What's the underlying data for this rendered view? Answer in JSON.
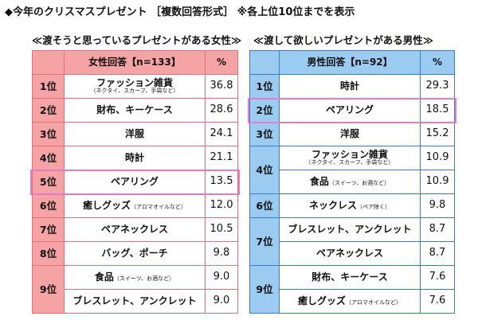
{
  "title": "◆今年のクリスマスプレゼント ［複数回答形式］ ※各上位10位までを表示",
  "female": {
    "subtitle": "≪渡そうと思っているプレゼントがある女性≫",
    "header": "女性回答【n=133】",
    "pct_header": "%",
    "colors": {
      "fill": "#f5a3a5",
      "border": "#e0707a"
    },
    "highlight_rank": "5位",
    "groups": [
      {
        "rank": "1位",
        "items": [
          {
            "name": "ファッション雑貨",
            "note": "（ネクタイ、スカーフ、手袋など）",
            "note_style": "below",
            "pct": "36.8"
          }
        ]
      },
      {
        "rank": "2位",
        "items": [
          {
            "name": "財布、キーケース",
            "pct": "28.6"
          }
        ]
      },
      {
        "rank": "3位",
        "items": [
          {
            "name": "洋服",
            "pct": "24.1"
          }
        ]
      },
      {
        "rank": "4位",
        "items": [
          {
            "name": "時計",
            "pct": "21.1"
          }
        ]
      },
      {
        "rank": "5位",
        "items": [
          {
            "name": "ペアリング",
            "pct": "13.5"
          }
        ]
      },
      {
        "rank": "6位",
        "items": [
          {
            "name": "癒しグッズ",
            "note": "（アロマオイルなど）",
            "pct": "12.0"
          }
        ]
      },
      {
        "rank": "7位",
        "items": [
          {
            "name": "ペアネックレス",
            "pct": "10.5"
          }
        ]
      },
      {
        "rank": "8位",
        "items": [
          {
            "name": "バッグ、ポーチ",
            "pct": "9.8"
          }
        ]
      },
      {
        "rank": "9位",
        "items": [
          {
            "name": "食品",
            "note": "（スイーツ、お酒など）",
            "pct": "9.0"
          },
          {
            "name": "ブレスレット、アンクレット",
            "pct": "9.0"
          }
        ]
      }
    ]
  },
  "male": {
    "subtitle": "≪渡して欲しいプレゼントがある男性≫",
    "header": "男性回答【n=92】",
    "pct_header": "%",
    "colors": {
      "fill": "#9ccbf2",
      "border": "#3b7bc7"
    },
    "highlight_rank": "2位",
    "groups": [
      {
        "rank": "1位",
        "items": [
          {
            "name": "時計",
            "pct": "29.3"
          }
        ]
      },
      {
        "rank": "2位",
        "items": [
          {
            "name": "ペアリング",
            "pct": "18.5"
          }
        ]
      },
      {
        "rank": "3位",
        "items": [
          {
            "name": "洋服",
            "pct": "15.2"
          }
        ]
      },
      {
        "rank": "4位",
        "items": [
          {
            "name": "ファッション雑貨",
            "note": "（ネクタイ、スカーフ、手袋など）",
            "note_style": "below",
            "pct": "10.9"
          },
          {
            "name": "食品",
            "note": "（スイーツ、お酒など）",
            "pct": "10.9"
          }
        ]
      },
      {
        "rank": "6位",
        "items": [
          {
            "name": "ネックレス",
            "note": "（ペア除く）",
            "pct": "9.8"
          }
        ]
      },
      {
        "rank": "7位",
        "items": [
          {
            "name": "ブレスレット、アンクレット",
            "pct": "8.7"
          },
          {
            "name": "ペアネックレス",
            "pct": "8.7"
          }
        ]
      },
      {
        "rank": "9位",
        "items": [
          {
            "name": "財布、キーケース",
            "pct": "7.6"
          },
          {
            "name": "癒しグッズ",
            "note": "（アロマオイルなど）",
            "pct": "7.6"
          }
        ]
      }
    ]
  }
}
